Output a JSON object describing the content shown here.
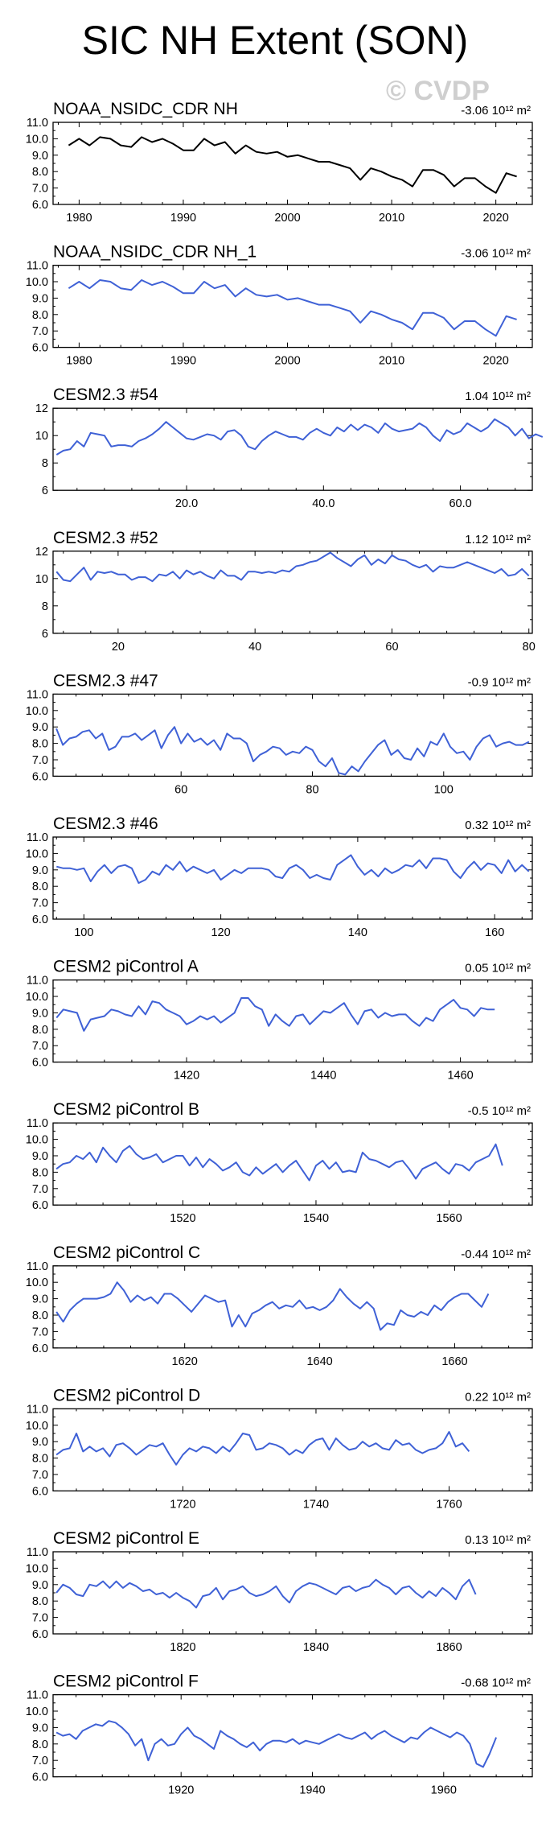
{
  "title": "SIC NH Extent (SON)",
  "watermark": "© CVDP",
  "units_label": "10¹² m²",
  "colors": {
    "obs_line": "#000000",
    "model_line": "#3f61d6",
    "axis": "#000000"
  },
  "chart_data": [
    {
      "type": "line",
      "title": "NOAA_NSIDC_CDR NH",
      "trend": "-3.06",
      "color": "#000000",
      "x_start": 1979,
      "xlim": [
        1977.5,
        2023.5
      ],
      "ylim": [
        6.0,
        11.0
      ],
      "yticks": [
        6.0,
        7.0,
        8.0,
        9.0,
        10.0,
        11.0
      ],
      "xticks": [
        1980,
        1990,
        2000,
        2010,
        2020
      ],
      "values": [
        9.6,
        10.0,
        9.6,
        10.1,
        10.0,
        9.6,
        9.5,
        10.1,
        9.8,
        10.0,
        9.7,
        9.3,
        9.3,
        10.0,
        9.6,
        9.8,
        9.1,
        9.6,
        9.2,
        9.1,
        9.2,
        8.9,
        9.0,
        8.8,
        8.6,
        8.6,
        8.4,
        8.2,
        7.5,
        8.2,
        8.0,
        7.7,
        7.5,
        7.1,
        8.1,
        8.1,
        7.8,
        7.1,
        7.6,
        7.6,
        7.1,
        6.7,
        7.9,
        7.7
      ]
    },
    {
      "type": "line",
      "title": "NOAA_NSIDC_CDR NH_1",
      "trend": "-3.06",
      "color": "#3f61d6",
      "x_start": 1979,
      "xlim": [
        1977.5,
        2023.5
      ],
      "ylim": [
        6.0,
        11.0
      ],
      "yticks": [
        6.0,
        7.0,
        8.0,
        9.0,
        10.0,
        11.0
      ],
      "xticks": [
        1980,
        1990,
        2000,
        2010,
        2020
      ],
      "values": [
        9.6,
        10.0,
        9.6,
        10.1,
        10.0,
        9.6,
        9.5,
        10.1,
        9.8,
        10.0,
        9.7,
        9.3,
        9.3,
        10.0,
        9.6,
        9.8,
        9.1,
        9.6,
        9.2,
        9.1,
        9.2,
        8.9,
        9.0,
        8.8,
        8.6,
        8.6,
        8.4,
        8.2,
        7.5,
        8.2,
        8.0,
        7.7,
        7.5,
        7.1,
        8.1,
        8.1,
        7.8,
        7.1,
        7.6,
        7.6,
        7.1,
        6.7,
        7.9,
        7.7
      ]
    },
    {
      "type": "line",
      "title": "CESM2.3 #54",
      "trend": "1.04",
      "color": "#3f61d6",
      "x_start": 1,
      "xlim": [
        0.5,
        70.5
      ],
      "ylim": [
        6.0,
        12.0
      ],
      "yticks": [
        6,
        8,
        10,
        12
      ],
      "xticks": [
        20,
        40,
        60
      ],
      "xtick_labels": [
        "20.0",
        "40.0",
        "60.0"
      ],
      "values": [
        8.6,
        8.9,
        9.0,
        9.6,
        9.2,
        10.2,
        10.1,
        10.0,
        9.2,
        9.3,
        9.3,
        9.2,
        9.6,
        9.8,
        10.1,
        10.5,
        11.0,
        10.6,
        10.2,
        9.8,
        9.7,
        9.9,
        10.1,
        10.0,
        9.7,
        10.3,
        10.4,
        10.0,
        9.2,
        9.0,
        9.6,
        10.0,
        10.3,
        10.1,
        9.9,
        9.9,
        9.7,
        10.2,
        10.5,
        10.2,
        10.0,
        10.6,
        10.3,
        10.8,
        10.4,
        10.8,
        10.6,
        10.2,
        10.9,
        10.5,
        10.3,
        10.4,
        10.5,
        10.9,
        10.6,
        10.0,
        9.6,
        10.4,
        10.1,
        10.3,
        10.9,
        10.6,
        10.3,
        10.6,
        11.2,
        10.9,
        10.6,
        10.0,
        10.5,
        9.8,
        10.1,
        9.9
      ]
    },
    {
      "type": "line",
      "title": "CESM2.3 #52",
      "trend": "1.12",
      "color": "#3f61d6",
      "x_start": 11,
      "xlim": [
        10.5,
        80.5
      ],
      "ylim": [
        6.0,
        12.0
      ],
      "yticks": [
        6,
        8,
        10,
        12
      ],
      "xticks": [
        20,
        40,
        60,
        80
      ],
      "values": [
        10.5,
        9.9,
        9.8,
        10.3,
        10.8,
        9.9,
        10.5,
        10.4,
        10.5,
        10.3,
        10.3,
        9.9,
        10.1,
        10.1,
        9.8,
        10.3,
        10.2,
        10.5,
        10.0,
        10.6,
        10.3,
        10.5,
        10.2,
        10.0,
        10.6,
        10.2,
        10.2,
        9.9,
        10.5,
        10.5,
        10.4,
        10.5,
        10.4,
        10.6,
        10.5,
        10.9,
        11.0,
        11.2,
        11.3,
        11.6,
        11.9,
        11.5,
        11.2,
        10.9,
        11.4,
        11.7,
        11.0,
        11.4,
        11.1,
        11.7,
        11.4,
        11.3,
        11.0,
        10.8,
        11.0,
        10.5,
        10.9,
        10.8,
        10.8,
        11.0,
        11.2,
        11.0,
        10.8,
        10.6,
        10.4,
        10.7,
        10.2,
        10.3,
        10.7,
        10.2
      ]
    },
    {
      "type": "line",
      "title": "CESM2.3 #47",
      "trend": "-0.9",
      "color": "#3f61d6",
      "x_start": 41,
      "xlim": [
        40.5,
        113.5
      ],
      "ylim": [
        6.0,
        11.0
      ],
      "yticks": [
        6.0,
        7.0,
        8.0,
        9.0,
        10.0,
        11.0
      ],
      "xticks": [
        60,
        80,
        100
      ],
      "values": [
        8.9,
        7.9,
        8.3,
        8.4,
        8.7,
        8.8,
        8.3,
        8.6,
        7.6,
        7.8,
        8.4,
        8.4,
        8.6,
        8.2,
        8.5,
        8.8,
        7.7,
        8.5,
        9.0,
        8.0,
        8.6,
        8.1,
        8.3,
        7.9,
        8.2,
        7.6,
        8.6,
        8.3,
        8.3,
        8.0,
        6.9,
        7.3,
        7.5,
        7.8,
        7.7,
        7.3,
        7.5,
        7.4,
        7.8,
        7.6,
        6.9,
        6.6,
        7.1,
        6.2,
        6.1,
        6.6,
        6.3,
        6.9,
        7.4,
        7.9,
        8.2,
        7.3,
        7.6,
        7.1,
        7.0,
        7.7,
        7.2,
        8.1,
        7.9,
        8.6,
        7.8,
        7.4,
        7.5,
        7.0,
        7.8,
        8.3,
        8.5,
        7.8,
        8.0,
        8.1,
        7.9,
        7.9,
        8.1
      ]
    },
    {
      "type": "line",
      "title": "CESM2.3 #46",
      "trend": "0.32",
      "color": "#3f61d6",
      "x_start": 96,
      "xlim": [
        95.5,
        165.5
      ],
      "ylim": [
        6.0,
        11.0
      ],
      "yticks": [
        6.0,
        7.0,
        8.0,
        9.0,
        10.0,
        11.0
      ],
      "xticks": [
        100,
        120,
        140,
        160
      ],
      "values": [
        9.2,
        9.1,
        9.1,
        9.0,
        9.1,
        8.3,
        8.9,
        9.3,
        8.8,
        9.2,
        9.3,
        9.1,
        8.2,
        8.4,
        8.9,
        8.7,
        9.3,
        9.0,
        9.5,
        8.9,
        9.2,
        9.0,
        8.8,
        9.0,
        8.4,
        8.7,
        9.0,
        8.8,
        9.1,
        9.1,
        9.1,
        9.0,
        8.6,
        8.5,
        9.1,
        9.3,
        9.0,
        8.5,
        8.7,
        8.5,
        8.4,
        9.3,
        9.6,
        9.9,
        9.2,
        8.7,
        9.0,
        8.6,
        9.1,
        8.8,
        9.0,
        9.3,
        9.2,
        9.6,
        9.1,
        9.7,
        9.7,
        9.6,
        8.9,
        8.5,
        9.1,
        9.5,
        9.0,
        9.4,
        9.3,
        8.8,
        9.6,
        8.9,
        9.3,
        8.9
      ]
    },
    {
      "type": "line",
      "title": "CESM2 piControl A",
      "trend": "0.05",
      "color": "#3f61d6",
      "x_start": 1401,
      "xlim": [
        1400.5,
        1470.5
      ],
      "ylim": [
        6.0,
        11.0
      ],
      "yticks": [
        6.0,
        7.0,
        8.0,
        9.0,
        10.0,
        11.0
      ],
      "xticks": [
        1420,
        1440,
        1460
      ],
      "values": [
        8.7,
        9.2,
        9.1,
        9.0,
        7.9,
        8.6,
        8.7,
        8.8,
        9.2,
        9.1,
        8.9,
        8.8,
        9.4,
        8.9,
        9.7,
        9.6,
        9.2,
        9.0,
        8.8,
        8.3,
        8.5,
        8.8,
        8.6,
        8.8,
        8.4,
        8.7,
        9.0,
        9.9,
        9.9,
        9.4,
        9.2,
        8.2,
        8.9,
        8.5,
        8.2,
        8.8,
        8.9,
        8.3,
        8.7,
        9.1,
        9.0,
        9.3,
        9.6,
        8.9,
        8.3,
        9.1,
        9.2,
        8.7,
        9.0,
        8.8,
        8.9,
        8.9,
        8.5,
        8.2,
        8.7,
        8.5,
        9.2,
        9.5,
        9.8,
        9.3,
        9.2,
        8.8,
        9.3,
        9.2,
        9.2
      ]
    },
    {
      "type": "line",
      "title": "CESM2 piControl B",
      "trend": "-0.5",
      "color": "#3f61d6",
      "x_start": 1501,
      "xlim": [
        1500.5,
        1572.5
      ],
      "ylim": [
        6.0,
        11.0
      ],
      "yticks": [
        6.0,
        7.0,
        8.0,
        9.0,
        10.0,
        11.0
      ],
      "xticks": [
        1520,
        1540,
        1560
      ],
      "values": [
        8.2,
        8.5,
        8.6,
        9.0,
        8.8,
        9.2,
        8.6,
        9.5,
        9.0,
        8.6,
        9.3,
        9.6,
        9.1,
        8.8,
        8.9,
        9.1,
        8.6,
        8.8,
        9.0,
        9.0,
        8.4,
        8.9,
        8.3,
        8.8,
        8.5,
        8.1,
        8.3,
        8.6,
        8.0,
        7.8,
        8.3,
        7.9,
        8.2,
        8.5,
        8.0,
        8.4,
        8.7,
        8.1,
        7.5,
        8.4,
        8.7,
        8.2,
        8.6,
        8.0,
        8.1,
        8.0,
        9.2,
        8.8,
        8.7,
        8.5,
        8.3,
        8.6,
        8.7,
        8.2,
        7.6,
        8.2,
        8.4,
        8.6,
        8.2,
        7.9,
        8.5,
        8.4,
        8.1,
        8.6,
        8.8,
        9.0,
        9.7,
        8.4
      ]
    },
    {
      "type": "line",
      "title": "CESM2 piControl C",
      "trend": "-0.44",
      "color": "#3f61d6",
      "x_start": 1601,
      "xlim": [
        1600.5,
        1671.5
      ],
      "ylim": [
        6.0,
        11.0
      ],
      "yticks": [
        6.0,
        7.0,
        8.0,
        9.0,
        10.0,
        11.0
      ],
      "xticks": [
        1620,
        1640,
        1660
      ],
      "values": [
        8.2,
        7.6,
        8.3,
        8.7,
        9.0,
        9.0,
        9.0,
        9.1,
        9.3,
        10.0,
        9.5,
        8.8,
        9.2,
        8.9,
        9.1,
        8.7,
        9.3,
        9.3,
        9.0,
        8.6,
        8.2,
        8.7,
        9.2,
        9.0,
        8.8,
        8.9,
        7.3,
        8.0,
        7.3,
        8.1,
        8.3,
        8.6,
        8.8,
        8.4,
        8.6,
        8.5,
        8.9,
        8.4,
        8.5,
        8.3,
        8.5,
        8.9,
        9.6,
        9.1,
        8.7,
        8.4,
        8.8,
        8.4,
        7.1,
        7.5,
        7.4,
        8.3,
        8.0,
        7.9,
        8.2,
        8.0,
        8.6,
        8.3,
        8.8,
        9.1,
        9.3,
        9.3,
        8.9,
        8.5,
        9.3
      ]
    },
    {
      "type": "line",
      "title": "CESM2 piControl D",
      "trend": "0.22",
      "color": "#3f61d6",
      "x_start": 1701,
      "xlim": [
        1700.5,
        1772.5
      ],
      "ylim": [
        6.0,
        11.0
      ],
      "yticks": [
        6.0,
        7.0,
        8.0,
        9.0,
        10.0,
        11.0
      ],
      "xticks": [
        1720,
        1740,
        1760
      ],
      "values": [
        8.2,
        8.5,
        8.6,
        9.5,
        8.4,
        8.7,
        8.4,
        8.6,
        8.1,
        8.8,
        8.9,
        8.6,
        8.2,
        8.5,
        8.8,
        8.7,
        8.9,
        8.2,
        7.6,
        8.2,
        8.6,
        8.4,
        8.7,
        8.6,
        8.3,
        8.7,
        8.4,
        8.9,
        9.5,
        9.4,
        8.5,
        8.6,
        8.9,
        8.8,
        8.6,
        8.2,
        8.5,
        8.3,
        8.8,
        9.1,
        9.2,
        8.5,
        9.2,
        8.8,
        8.5,
        8.6,
        9.0,
        8.7,
        8.9,
        8.6,
        8.5,
        9.1,
        8.8,
        8.9,
        8.5,
        8.3,
        8.5,
        8.6,
        8.9,
        9.6,
        8.7,
        8.9,
        8.4
      ]
    },
    {
      "type": "line",
      "title": "CESM2 piControl E",
      "trend": "0.13",
      "color": "#3f61d6",
      "x_start": 1801,
      "xlim": [
        1800.5,
        1872.5
      ],
      "ylim": [
        6.0,
        11.0
      ],
      "yticks": [
        6.0,
        7.0,
        8.0,
        9.0,
        10.0,
        11.0
      ],
      "xticks": [
        1820,
        1840,
        1860
      ],
      "values": [
        8.5,
        9.0,
        8.8,
        8.4,
        8.3,
        9.0,
        8.9,
        9.2,
        8.8,
        9.2,
        8.8,
        9.1,
        8.9,
        8.6,
        8.7,
        8.4,
        8.5,
        8.2,
        8.5,
        8.2,
        8.0,
        7.6,
        8.3,
        8.4,
        8.8,
        8.1,
        8.6,
        8.7,
        8.9,
        8.5,
        8.3,
        8.4,
        8.6,
        8.9,
        8.3,
        7.9,
        8.6,
        8.9,
        9.1,
        9.0,
        8.8,
        8.6,
        8.4,
        8.8,
        8.9,
        8.6,
        8.8,
        8.9,
        9.3,
        9.0,
        8.8,
        8.4,
        8.8,
        8.9,
        8.5,
        8.2,
        8.6,
        8.3,
        8.8,
        8.5,
        8.1,
        8.9,
        9.3,
        8.4
      ]
    },
    {
      "type": "line",
      "title": "CESM2 piControl F",
      "trend": "-0.68",
      "color": "#3f61d6",
      "x_start": 1901,
      "xlim": [
        1900.5,
        1973.5
      ],
      "ylim": [
        6.0,
        11.0
      ],
      "yticks": [
        6.0,
        7.0,
        8.0,
        9.0,
        10.0,
        11.0
      ],
      "xticks": [
        1920,
        1940,
        1960
      ],
      "values": [
        8.7,
        8.5,
        8.6,
        8.3,
        8.8,
        9.0,
        9.2,
        9.1,
        9.4,
        9.3,
        9.0,
        8.6,
        7.9,
        8.3,
        7.0,
        8.0,
        8.3,
        7.9,
        8.0,
        8.6,
        9.0,
        8.5,
        8.3,
        8.0,
        7.7,
        8.8,
        8.5,
        8.3,
        8.0,
        7.8,
        8.1,
        7.6,
        8.0,
        8.2,
        8.2,
        8.1,
        8.3,
        8.0,
        8.2,
        8.1,
        8.0,
        8.2,
        8.4,
        8.6,
        8.4,
        8.3,
        8.5,
        8.7,
        8.3,
        8.6,
        8.8,
        8.5,
        8.3,
        8.1,
        8.4,
        8.3,
        8.7,
        9.0,
        8.8,
        8.6,
        8.4,
        8.7,
        8.5,
        8.0,
        6.8,
        6.6,
        7.4,
        8.4
      ]
    }
  ]
}
